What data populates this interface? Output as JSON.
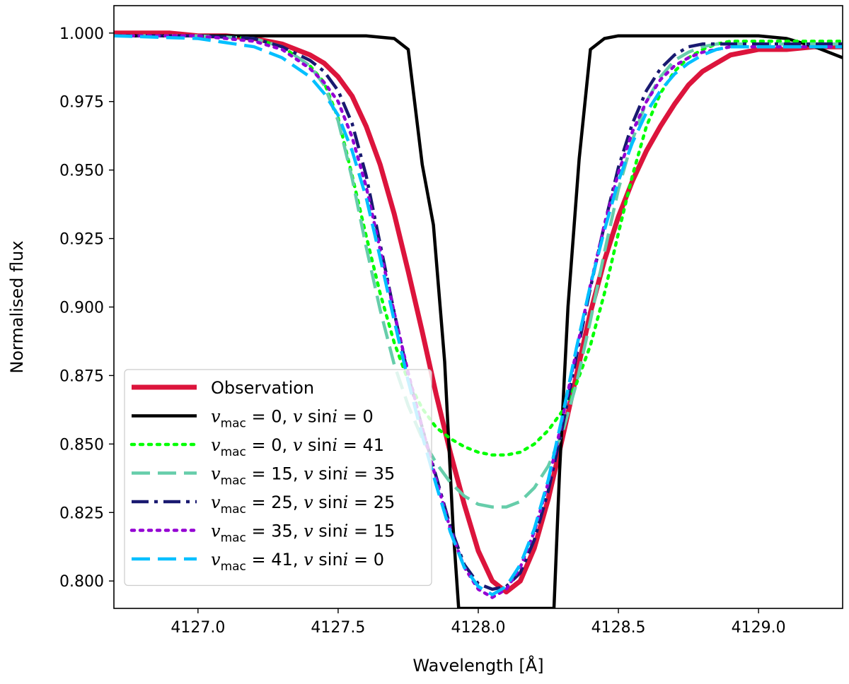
{
  "chart_data": {
    "type": "line",
    "title": "",
    "xlabel": "Wavelength [Å]",
    "ylabel": "Normalised flux",
    "xlim": [
      4126.7,
      4129.3
    ],
    "ylim": [
      0.79,
      1.01
    ],
    "xticks": [
      4127.0,
      4127.5,
      4128.0,
      4128.5,
      4129.0
    ],
    "xtick_labels": [
      "4127.0",
      "4127.5",
      "4128.0",
      "4128.5",
      "4129.0"
    ],
    "yticks": [
      0.8,
      0.825,
      0.85,
      0.875,
      0.9,
      0.925,
      0.95,
      0.975,
      1.0
    ],
    "ytick_labels": [
      "0.800",
      "0.825",
      "0.850",
      "0.875",
      "0.900",
      "0.925",
      "0.950",
      "0.975",
      "1.000"
    ],
    "legend_position": "lower-left",
    "series": [
      {
        "name": "Observation",
        "label_parts": {
          "text": "Observation"
        },
        "color": "#dc143c",
        "style": "solid",
        "width": "thick",
        "x": [
          4126.7,
          4126.8,
          4126.9,
          4127.0,
          4127.1,
          4127.2,
          4127.3,
          4127.4,
          4127.45,
          4127.5,
          4127.55,
          4127.6,
          4127.65,
          4127.7,
          4127.75,
          4127.8,
          4127.85,
          4127.9,
          4127.95,
          4128.0,
          4128.05,
          4128.1,
          4128.15,
          4128.2,
          4128.25,
          4128.3,
          4128.35,
          4128.4,
          4128.45,
          4128.5,
          4128.55,
          4128.6,
          4128.65,
          4128.7,
          4128.75,
          4128.8,
          4128.85,
          4128.9,
          4128.95,
          4129.0,
          4129.1,
          4129.2,
          4129.3
        ],
        "y": [
          1.0,
          1.0,
          1.0,
          0.999,
          0.999,
          0.998,
          0.996,
          0.992,
          0.989,
          0.984,
          0.977,
          0.966,
          0.952,
          0.934,
          0.913,
          0.891,
          0.868,
          0.847,
          0.828,
          0.811,
          0.8,
          0.796,
          0.8,
          0.812,
          0.83,
          0.852,
          0.875,
          0.898,
          0.917,
          0.933,
          0.946,
          0.957,
          0.966,
          0.974,
          0.981,
          0.986,
          0.989,
          0.992,
          0.993,
          0.994,
          0.994,
          0.995,
          0.995
        ]
      },
      {
        "name": "vmac = 0, v sini = 0",
        "label_parts": {
          "vmac": "0",
          "vsini": "0"
        },
        "color": "#000000",
        "style": "solid",
        "width": "normal",
        "x": [
          4126.7,
          4127.0,
          4127.3,
          4127.5,
          4127.6,
          4127.7,
          4127.75,
          4127.8,
          4127.84,
          4127.88,
          4127.91,
          4127.93,
          4128.27,
          4128.29,
          4128.32,
          4128.36,
          4128.4,
          4128.45,
          4128.5,
          4128.6,
          4128.8,
          4129.0,
          4129.1,
          4129.2,
          4129.3
        ],
        "y": [
          0.999,
          0.999,
          0.999,
          0.999,
          0.999,
          0.998,
          0.994,
          0.952,
          0.93,
          0.88,
          0.82,
          0.79,
          0.79,
          0.84,
          0.9,
          0.954,
          0.994,
          0.998,
          0.999,
          0.999,
          0.999,
          0.999,
          0.998,
          0.995,
          0.991
        ]
      },
      {
        "name": "vmac = 0, v sini = 41",
        "label_parts": {
          "vmac": "0",
          "vsini": "41"
        },
        "color": "#00ff00",
        "style": "dotted",
        "width": "normal",
        "x": [
          4126.7,
          4127.0,
          4127.2,
          4127.3,
          4127.4,
          4127.45,
          4127.5,
          4127.55,
          4127.6,
          4127.65,
          4127.7,
          4127.75,
          4127.8,
          4127.85,
          4127.9,
          4127.95,
          4128.0,
          4128.05,
          4128.1,
          4128.15,
          4128.2,
          4128.25,
          4128.3,
          4128.35,
          4128.4,
          4128.45,
          4128.5,
          4128.55,
          4128.6,
          4128.65,
          4128.7,
          4128.75,
          4128.8,
          4128.85,
          4128.9,
          4129.0,
          4129.1,
          4129.2,
          4129.3
        ],
        "y": [
          0.999,
          0.999,
          0.998,
          0.995,
          0.988,
          0.982,
          0.969,
          0.948,
          0.926,
          0.905,
          0.887,
          0.873,
          0.863,
          0.856,
          0.852,
          0.849,
          0.847,
          0.846,
          0.846,
          0.847,
          0.85,
          0.855,
          0.862,
          0.872,
          0.886,
          0.905,
          0.927,
          0.948,
          0.966,
          0.978,
          0.986,
          0.991,
          0.994,
          0.996,
          0.997,
          0.997,
          0.997,
          0.997,
          0.997
        ]
      },
      {
        "name": "vmac = 15, v sini = 35",
        "label_parts": {
          "vmac": "15",
          "vsini": "35"
        },
        "color": "#66cdaa",
        "style": "dashed",
        "width": "normal",
        "x": [
          4126.7,
          4127.0,
          4127.2,
          4127.3,
          4127.4,
          4127.45,
          4127.5,
          4127.55,
          4127.6,
          4127.65,
          4127.7,
          4127.75,
          4127.8,
          4127.85,
          4127.9,
          4127.95,
          4128.0,
          4128.05,
          4128.1,
          4128.15,
          4128.2,
          4128.25,
          4128.3,
          4128.35,
          4128.4,
          4128.45,
          4128.5,
          4128.55,
          4128.6,
          4128.65,
          4128.7,
          4128.75,
          4128.8,
          4128.85,
          4128.9,
          4129.0,
          4129.1,
          4129.2,
          4129.3
        ],
        "y": [
          0.999,
          0.999,
          0.998,
          0.995,
          0.988,
          0.981,
          0.968,
          0.947,
          0.922,
          0.899,
          0.879,
          0.864,
          0.852,
          0.843,
          0.836,
          0.831,
          0.828,
          0.827,
          0.827,
          0.829,
          0.834,
          0.842,
          0.854,
          0.872,
          0.895,
          0.92,
          0.943,
          0.961,
          0.975,
          0.984,
          0.99,
          0.993,
          0.995,
          0.996,
          0.996,
          0.996,
          0.996,
          0.996,
          0.996
        ]
      },
      {
        "name": "vmac = 25, v sini = 25",
        "label_parts": {
          "vmac": "25",
          "vsini": "25"
        },
        "color": "#191970",
        "style": "dashdot",
        "width": "normal",
        "x": [
          4126.7,
          4127.0,
          4127.2,
          4127.3,
          4127.4,
          4127.45,
          4127.5,
          4127.55,
          4127.6,
          4127.65,
          4127.7,
          4127.75,
          4127.8,
          4127.85,
          4127.9,
          4127.95,
          4128.0,
          4128.05,
          4128.1,
          4128.15,
          4128.2,
          4128.25,
          4128.3,
          4128.35,
          4128.4,
          4128.45,
          4128.5,
          4128.55,
          4128.6,
          4128.65,
          4128.7,
          4128.75,
          4128.8,
          4128.85,
          4128.9,
          4129.0,
          4129.1,
          4129.2,
          4129.3
        ],
        "y": [
          0.999,
          0.999,
          0.998,
          0.995,
          0.99,
          0.986,
          0.979,
          0.967,
          0.948,
          0.923,
          0.898,
          0.875,
          0.856,
          0.838,
          0.82,
          0.806,
          0.799,
          0.797,
          0.798,
          0.803,
          0.815,
          0.833,
          0.856,
          0.882,
          0.907,
          0.93,
          0.951,
          0.967,
          0.979,
          0.987,
          0.992,
          0.995,
          0.996,
          0.996,
          0.996,
          0.996,
          0.996,
          0.996,
          0.996
        ]
      },
      {
        "name": "vmac = 35, v sini = 15",
        "label_parts": {
          "vmac": "35",
          "vsini": "15"
        },
        "color": "#9400d3",
        "style": "dotted",
        "width": "normal",
        "x": [
          4126.7,
          4127.0,
          4127.2,
          4127.3,
          4127.4,
          4127.45,
          4127.5,
          4127.55,
          4127.6,
          4127.65,
          4127.7,
          4127.75,
          4127.8,
          4127.85,
          4127.9,
          4127.95,
          4128.0,
          4128.05,
          4128.1,
          4128.15,
          4128.2,
          4128.25,
          4128.3,
          4128.35,
          4128.4,
          4128.45,
          4128.5,
          4128.55,
          4128.6,
          4128.65,
          4128.7,
          4128.75,
          4128.8,
          4128.85,
          4128.9,
          4129.0,
          4129.1,
          4129.2,
          4129.3
        ],
        "y": [
          0.999,
          0.999,
          0.997,
          0.994,
          0.987,
          0.982,
          0.975,
          0.962,
          0.944,
          0.921,
          0.898,
          0.876,
          0.856,
          0.837,
          0.819,
          0.805,
          0.797,
          0.794,
          0.797,
          0.805,
          0.818,
          0.836,
          0.859,
          0.884,
          0.908,
          0.93,
          0.949,
          0.964,
          0.975,
          0.983,
          0.988,
          0.991,
          0.993,
          0.994,
          0.995,
          0.995,
          0.995,
          0.995,
          0.995
        ]
      },
      {
        "name": "vmac = 41, v sini = 0",
        "label_parts": {
          "vmac": "41",
          "vsini": "0"
        },
        "color": "#00bfff",
        "style": "dashed",
        "width": "normal",
        "x": [
          4126.7,
          4127.0,
          4127.2,
          4127.3,
          4127.4,
          4127.45,
          4127.5,
          4127.55,
          4127.6,
          4127.65,
          4127.7,
          4127.75,
          4127.8,
          4127.85,
          4127.9,
          4127.95,
          4128.0,
          4128.05,
          4128.1,
          4128.15,
          4128.2,
          4128.25,
          4128.3,
          4128.35,
          4128.4,
          4128.45,
          4128.5,
          4128.55,
          4128.6,
          4128.65,
          4128.7,
          4128.75,
          4128.8,
          4128.85,
          4128.9,
          4129.0,
          4129.1,
          4129.2,
          4129.3
        ],
        "y": [
          0.999,
          0.998,
          0.995,
          0.991,
          0.984,
          0.978,
          0.97,
          0.957,
          0.94,
          0.918,
          0.895,
          0.873,
          0.853,
          0.835,
          0.818,
          0.805,
          0.798,
          0.795,
          0.798,
          0.806,
          0.819,
          0.837,
          0.86,
          0.885,
          0.908,
          0.928,
          0.946,
          0.96,
          0.971,
          0.979,
          0.985,
          0.989,
          0.992,
          0.994,
          0.995,
          0.995,
          0.995,
          0.995,
          0.995
        ]
      }
    ]
  }
}
